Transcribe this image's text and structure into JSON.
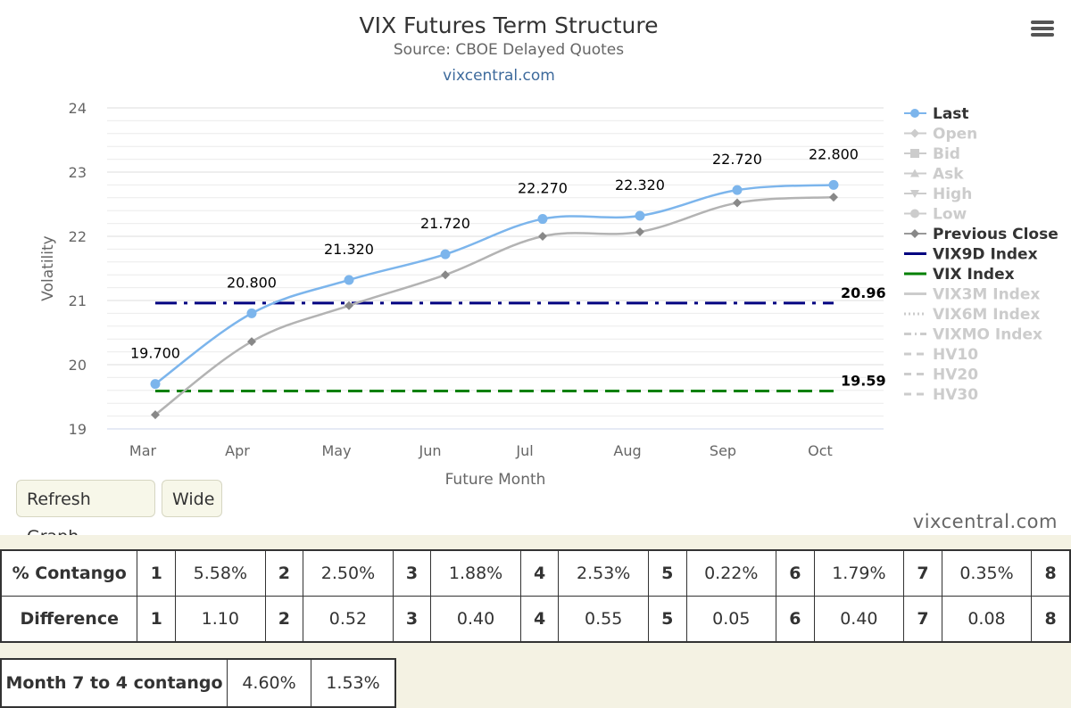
{
  "chart_data": {
    "type": "line",
    "title": "VIX Futures Term Structure",
    "subtitle": "Source: CBOE Delayed Quotes",
    "credit_top": "vixcentral.com",
    "xlabel": "Future Month",
    "ylabel": "Volatility",
    "categories": [
      "Mar",
      "Apr",
      "May",
      "Jun",
      "Jul",
      "Aug",
      "Sep",
      "Oct"
    ],
    "ylim": [
      19,
      24
    ],
    "yticks": [
      "19",
      "20",
      "21",
      "22",
      "23",
      "24"
    ],
    "legend_position": "right",
    "grid": true,
    "series": [
      {
        "name": "Last",
        "values": [
          19.7,
          20.8,
          21.32,
          21.72,
          22.27,
          22.32,
          22.72,
          22.8
        ],
        "labels": [
          "19.700",
          "20.800",
          "21.320",
          "21.720",
          "22.270",
          "22.320",
          "22.720",
          "22.800"
        ],
        "color": "#7cb5ec",
        "active": true
      },
      {
        "name": "Previous Close",
        "values": [
          19.22,
          20.36,
          20.92,
          21.4,
          22.0,
          22.07,
          22.52,
          22.61
        ],
        "color": "#999999",
        "active": true
      },
      {
        "name": "VIX9D Index",
        "value": 20.96,
        "label": "20.96",
        "color": "#000080",
        "active": true
      },
      {
        "name": "VIX Index",
        "value": 19.59,
        "label": "19.59",
        "color": "#008000",
        "active": true
      }
    ],
    "legend": [
      {
        "name": "Last",
        "active": true,
        "style": "circle",
        "color": "#7cb5ec"
      },
      {
        "name": "Open",
        "active": false,
        "style": "diamond"
      },
      {
        "name": "Bid",
        "active": false,
        "style": "square"
      },
      {
        "name": "Ask",
        "active": false,
        "style": "triangle"
      },
      {
        "name": "High",
        "active": false,
        "style": "triangle-down"
      },
      {
        "name": "Low",
        "active": false,
        "style": "circle"
      },
      {
        "name": "Previous Close",
        "active": true,
        "style": "diamond",
        "color": "#999999"
      },
      {
        "name": "VIX9D Index",
        "active": true,
        "style": "solid",
        "color": "#000080"
      },
      {
        "name": "VIX Index",
        "active": true,
        "style": "solid",
        "color": "#008000"
      },
      {
        "name": "VIX3M Index",
        "active": false,
        "style": "solid"
      },
      {
        "name": "VIX6M Index",
        "active": false,
        "style": "dotted"
      },
      {
        "name": "VIXMO Index",
        "active": false,
        "style": "dashdot"
      },
      {
        "name": "HV10",
        "active": false,
        "style": "dashed"
      },
      {
        "name": "HV20",
        "active": false,
        "style": "dashed"
      },
      {
        "name": "HV30",
        "active": false,
        "style": "dashed"
      }
    ]
  },
  "buttons": {
    "refresh": "Refresh Graph",
    "wide": "Wide"
  },
  "credit_bottom": "vixcentral.com",
  "contango_table": {
    "rows": [
      {
        "label": "% Contango",
        "cells": [
          {
            "n": "1",
            "v": "5.58%"
          },
          {
            "n": "2",
            "v": "2.50%"
          },
          {
            "n": "3",
            "v": "1.88%"
          },
          {
            "n": "4",
            "v": "2.53%"
          },
          {
            "n": "5",
            "v": "0.22%"
          },
          {
            "n": "6",
            "v": "1.79%"
          },
          {
            "n": "7",
            "v": "0.35%"
          },
          {
            "n": "8",
            "v": ""
          }
        ]
      },
      {
        "label": "Difference",
        "cells": [
          {
            "n": "1",
            "v": "1.10"
          },
          {
            "n": "2",
            "v": "0.52"
          },
          {
            "n": "3",
            "v": "0.40"
          },
          {
            "n": "4",
            "v": "0.55"
          },
          {
            "n": "5",
            "v": "0.05"
          },
          {
            "n": "6",
            "v": "0.40"
          },
          {
            "n": "7",
            "v": "0.08"
          },
          {
            "n": "8",
            "v": ""
          }
        ]
      }
    ]
  },
  "month_table": {
    "label": "Month 7 to 4 contango",
    "values": [
      "4.60%",
      "1.53%"
    ]
  }
}
